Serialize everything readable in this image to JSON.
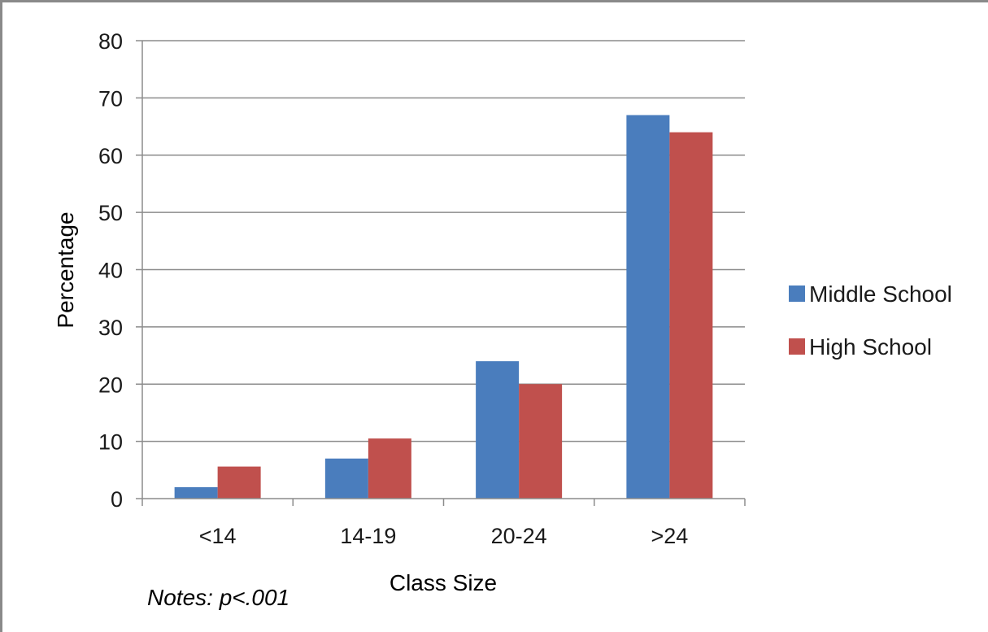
{
  "chart_data": {
    "type": "bar",
    "categories": [
      "<14",
      "14-19",
      "20-24",
      ">24"
    ],
    "series": [
      {
        "name": "Middle School",
        "values": [
          2,
          7,
          24,
          67
        ],
        "color": "#4a7dbd"
      },
      {
        "name": "High School",
        "values": [
          5.6,
          10.5,
          20,
          64
        ],
        "color": "#c0504d"
      }
    ],
    "title": "",
    "xlabel": "Class Size",
    "ylabel": "Percentage",
    "ylim": [
      0,
      80
    ],
    "yticks": [
      "0",
      "10",
      "20",
      "30",
      "40",
      "50",
      "60",
      "70",
      "80"
    ],
    "grid": true,
    "legend_position": "right",
    "note": "Notes: p<.001"
  }
}
